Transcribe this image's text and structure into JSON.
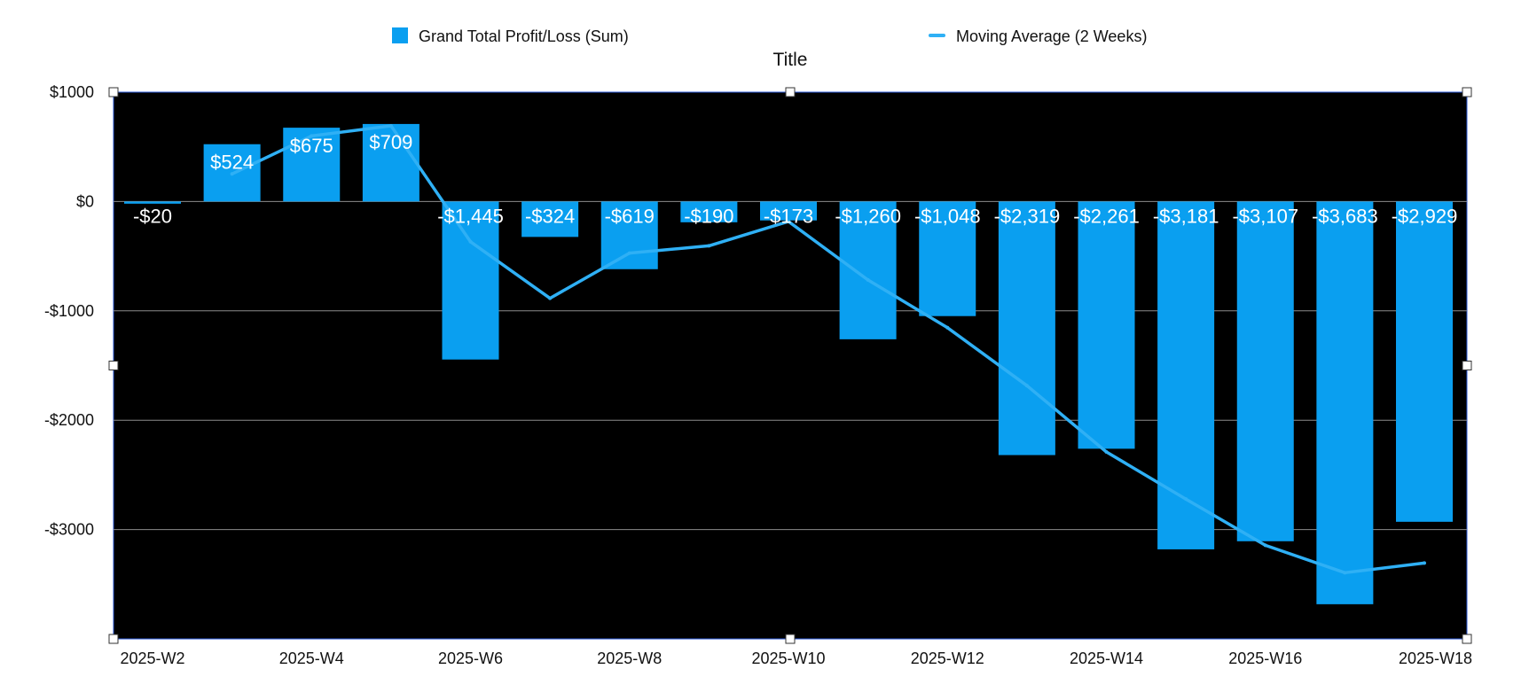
{
  "chart_data": {
    "type": "bar",
    "title": "Title",
    "categories": [
      "2025-W2",
      "2025-W3",
      "2025-W4",
      "2025-W5",
      "2025-W6",
      "2025-W7",
      "2025-W8",
      "2025-W9",
      "2025-W10",
      "2025-W11",
      "2025-W12",
      "2025-W13",
      "2025-W14",
      "2025-W15",
      "2025-W16",
      "2025-W17",
      "2025-W18"
    ],
    "x_tick_labels": [
      "2025-W2",
      "2025-W4",
      "2025-W6",
      "2025-W8",
      "2025-W10",
      "2025-W12",
      "2025-W14",
      "2025-W16",
      "2025-W18"
    ],
    "series": [
      {
        "name": "Grand Total Profit/Loss (Sum)",
        "type": "bar",
        "color": "#0a9ff0",
        "values": [
          -20,
          524,
          675,
          709,
          -1445,
          -324,
          -619,
          -190,
          -173,
          -1260,
          -1048,
          -2319,
          -2261,
          -3181,
          -3107,
          -3683,
          -2929
        ],
        "data_labels": [
          "-$20",
          "$524",
          "$675",
          "$709",
          "-$1,445",
          "-$324",
          "-$619",
          "-$190",
          "-$173",
          "-$1,260",
          "-$1,048",
          "-$2,319",
          "-$2,261",
          "-$3,181",
          "-$3,107",
          "-$3,683",
          "-$2,929"
        ]
      },
      {
        "name": "Moving Average (2 Weeks)",
        "type": "line",
        "color": "#2fb0f5",
        "values": [
          null,
          252,
          600,
          692,
          -368,
          -885,
          -472,
          -405,
          -182,
          -717,
          -1154,
          -1684,
          -2290,
          -2721,
          -3144,
          -3395,
          -3306
        ]
      }
    ],
    "y_tick_labels": [
      "$1000",
      "$0",
      "-$1000",
      "-$2000",
      "-$3000"
    ],
    "y_ticks": [
      1000,
      0,
      -1000,
      -2000,
      -3000
    ],
    "ylim": [
      -4000,
      1000
    ],
    "plot_background": "#000000",
    "grid": true,
    "legend_position": "top"
  }
}
